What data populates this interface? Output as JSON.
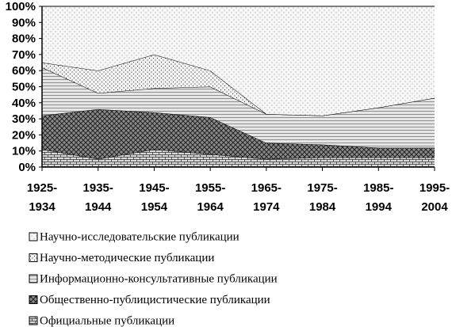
{
  "chart_data": {
    "type": "stacked-area",
    "categories": [
      "1925-1934",
      "1935-1944",
      "1945-1954",
      "1955-1964",
      "1965-1974",
      "1975-1984",
      "1985-1994",
      "1995-2004"
    ],
    "series": [
      {
        "name": "Официальные публикации",
        "color": "#d8d8d8",
        "values": [
          11,
          5,
          11,
          8,
          5,
          6,
          6,
          6
        ]
      },
      {
        "name": "Общественно-публицистические публикации",
        "color": "#8a8a8a",
        "values": [
          21,
          31,
          23,
          23,
          10,
          8,
          6,
          6
        ]
      },
      {
        "name": "Информационно-консультативные публикации",
        "color": "#e6e6e6",
        "values": [
          30,
          10,
          15,
          19,
          18,
          18,
          25,
          31
        ]
      },
      {
        "name": "Научно-методические публикации",
        "color": "#f2f2f2",
        "values": [
          3,
          14,
          21,
          10,
          0,
          0,
          0,
          0
        ]
      },
      {
        "name": "Научно-исследовательские публикации",
        "color": "#f7f7f7",
        "values": [
          35,
          40,
          30,
          40,
          67,
          68,
          63,
          57
        ]
      }
    ],
    "ylim": [
      0,
      100
    ],
    "yticks": [
      {
        "value": 0,
        "label": "0%"
      },
      {
        "value": 10,
        "label": "10%"
      },
      {
        "value": 20,
        "label": "20%"
      },
      {
        "value": 30,
        "label": "30%"
      },
      {
        "value": 40,
        "label": "40%"
      },
      {
        "value": 50,
        "label": "50%"
      },
      {
        "value": 60,
        "label": "60%"
      },
      {
        "value": 70,
        "label": "70%"
      },
      {
        "value": 80,
        "label": "80%"
      },
      {
        "value": 90,
        "label": "90%"
      },
      {
        "value": 100,
        "label": "100%"
      }
    ]
  }
}
